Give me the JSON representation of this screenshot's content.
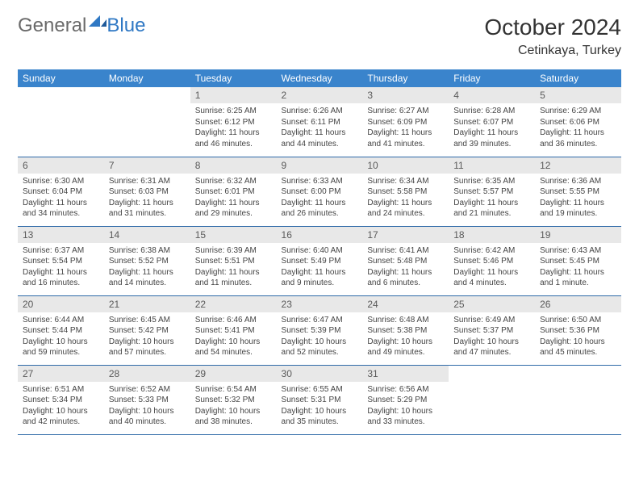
{
  "brand": {
    "part1": "General",
    "part2": "Blue"
  },
  "title": {
    "month": "October 2024",
    "location": "Cetinkaya, Turkey"
  },
  "colors": {
    "header_bg": "#3a84cc",
    "header_text": "#ffffff",
    "daynum_bg": "#e8e8e8",
    "daynum_text": "#5a5a5a",
    "body_text": "#444444",
    "rule": "#2f6aa8",
    "logo_gray": "#6a6a6a",
    "logo_blue": "#2f78c4"
  },
  "weekdays": [
    "Sunday",
    "Monday",
    "Tuesday",
    "Wednesday",
    "Thursday",
    "Friday",
    "Saturday"
  ],
  "weeks": [
    [
      {
        "n": "",
        "sr": "",
        "ss": "",
        "dl": "",
        "empty": true
      },
      {
        "n": "",
        "sr": "",
        "ss": "",
        "dl": "",
        "empty": true
      },
      {
        "n": "1",
        "sr": "Sunrise: 6:25 AM",
        "ss": "Sunset: 6:12 PM",
        "dl": "Daylight: 11 hours and 46 minutes."
      },
      {
        "n": "2",
        "sr": "Sunrise: 6:26 AM",
        "ss": "Sunset: 6:11 PM",
        "dl": "Daylight: 11 hours and 44 minutes."
      },
      {
        "n": "3",
        "sr": "Sunrise: 6:27 AM",
        "ss": "Sunset: 6:09 PM",
        "dl": "Daylight: 11 hours and 41 minutes."
      },
      {
        "n": "4",
        "sr": "Sunrise: 6:28 AM",
        "ss": "Sunset: 6:07 PM",
        "dl": "Daylight: 11 hours and 39 minutes."
      },
      {
        "n": "5",
        "sr": "Sunrise: 6:29 AM",
        "ss": "Sunset: 6:06 PM",
        "dl": "Daylight: 11 hours and 36 minutes."
      }
    ],
    [
      {
        "n": "6",
        "sr": "Sunrise: 6:30 AM",
        "ss": "Sunset: 6:04 PM",
        "dl": "Daylight: 11 hours and 34 minutes."
      },
      {
        "n": "7",
        "sr": "Sunrise: 6:31 AM",
        "ss": "Sunset: 6:03 PM",
        "dl": "Daylight: 11 hours and 31 minutes."
      },
      {
        "n": "8",
        "sr": "Sunrise: 6:32 AM",
        "ss": "Sunset: 6:01 PM",
        "dl": "Daylight: 11 hours and 29 minutes."
      },
      {
        "n": "9",
        "sr": "Sunrise: 6:33 AM",
        "ss": "Sunset: 6:00 PM",
        "dl": "Daylight: 11 hours and 26 minutes."
      },
      {
        "n": "10",
        "sr": "Sunrise: 6:34 AM",
        "ss": "Sunset: 5:58 PM",
        "dl": "Daylight: 11 hours and 24 minutes."
      },
      {
        "n": "11",
        "sr": "Sunrise: 6:35 AM",
        "ss": "Sunset: 5:57 PM",
        "dl": "Daylight: 11 hours and 21 minutes."
      },
      {
        "n": "12",
        "sr": "Sunrise: 6:36 AM",
        "ss": "Sunset: 5:55 PM",
        "dl": "Daylight: 11 hours and 19 minutes."
      }
    ],
    [
      {
        "n": "13",
        "sr": "Sunrise: 6:37 AM",
        "ss": "Sunset: 5:54 PM",
        "dl": "Daylight: 11 hours and 16 minutes."
      },
      {
        "n": "14",
        "sr": "Sunrise: 6:38 AM",
        "ss": "Sunset: 5:52 PM",
        "dl": "Daylight: 11 hours and 14 minutes."
      },
      {
        "n": "15",
        "sr": "Sunrise: 6:39 AM",
        "ss": "Sunset: 5:51 PM",
        "dl": "Daylight: 11 hours and 11 minutes."
      },
      {
        "n": "16",
        "sr": "Sunrise: 6:40 AM",
        "ss": "Sunset: 5:49 PM",
        "dl": "Daylight: 11 hours and 9 minutes."
      },
      {
        "n": "17",
        "sr": "Sunrise: 6:41 AM",
        "ss": "Sunset: 5:48 PM",
        "dl": "Daylight: 11 hours and 6 minutes."
      },
      {
        "n": "18",
        "sr": "Sunrise: 6:42 AM",
        "ss": "Sunset: 5:46 PM",
        "dl": "Daylight: 11 hours and 4 minutes."
      },
      {
        "n": "19",
        "sr": "Sunrise: 6:43 AM",
        "ss": "Sunset: 5:45 PM",
        "dl": "Daylight: 11 hours and 1 minute."
      }
    ],
    [
      {
        "n": "20",
        "sr": "Sunrise: 6:44 AM",
        "ss": "Sunset: 5:44 PM",
        "dl": "Daylight: 10 hours and 59 minutes."
      },
      {
        "n": "21",
        "sr": "Sunrise: 6:45 AM",
        "ss": "Sunset: 5:42 PM",
        "dl": "Daylight: 10 hours and 57 minutes."
      },
      {
        "n": "22",
        "sr": "Sunrise: 6:46 AM",
        "ss": "Sunset: 5:41 PM",
        "dl": "Daylight: 10 hours and 54 minutes."
      },
      {
        "n": "23",
        "sr": "Sunrise: 6:47 AM",
        "ss": "Sunset: 5:39 PM",
        "dl": "Daylight: 10 hours and 52 minutes."
      },
      {
        "n": "24",
        "sr": "Sunrise: 6:48 AM",
        "ss": "Sunset: 5:38 PM",
        "dl": "Daylight: 10 hours and 49 minutes."
      },
      {
        "n": "25",
        "sr": "Sunrise: 6:49 AM",
        "ss": "Sunset: 5:37 PM",
        "dl": "Daylight: 10 hours and 47 minutes."
      },
      {
        "n": "26",
        "sr": "Sunrise: 6:50 AM",
        "ss": "Sunset: 5:36 PM",
        "dl": "Daylight: 10 hours and 45 minutes."
      }
    ],
    [
      {
        "n": "27",
        "sr": "Sunrise: 6:51 AM",
        "ss": "Sunset: 5:34 PM",
        "dl": "Daylight: 10 hours and 42 minutes."
      },
      {
        "n": "28",
        "sr": "Sunrise: 6:52 AM",
        "ss": "Sunset: 5:33 PM",
        "dl": "Daylight: 10 hours and 40 minutes."
      },
      {
        "n": "29",
        "sr": "Sunrise: 6:54 AM",
        "ss": "Sunset: 5:32 PM",
        "dl": "Daylight: 10 hours and 38 minutes."
      },
      {
        "n": "30",
        "sr": "Sunrise: 6:55 AM",
        "ss": "Sunset: 5:31 PM",
        "dl": "Daylight: 10 hours and 35 minutes."
      },
      {
        "n": "31",
        "sr": "Sunrise: 6:56 AM",
        "ss": "Sunset: 5:29 PM",
        "dl": "Daylight: 10 hours and 33 minutes."
      },
      {
        "n": "",
        "sr": "",
        "ss": "",
        "dl": "",
        "empty": true
      },
      {
        "n": "",
        "sr": "",
        "ss": "",
        "dl": "",
        "empty": true
      }
    ]
  ]
}
